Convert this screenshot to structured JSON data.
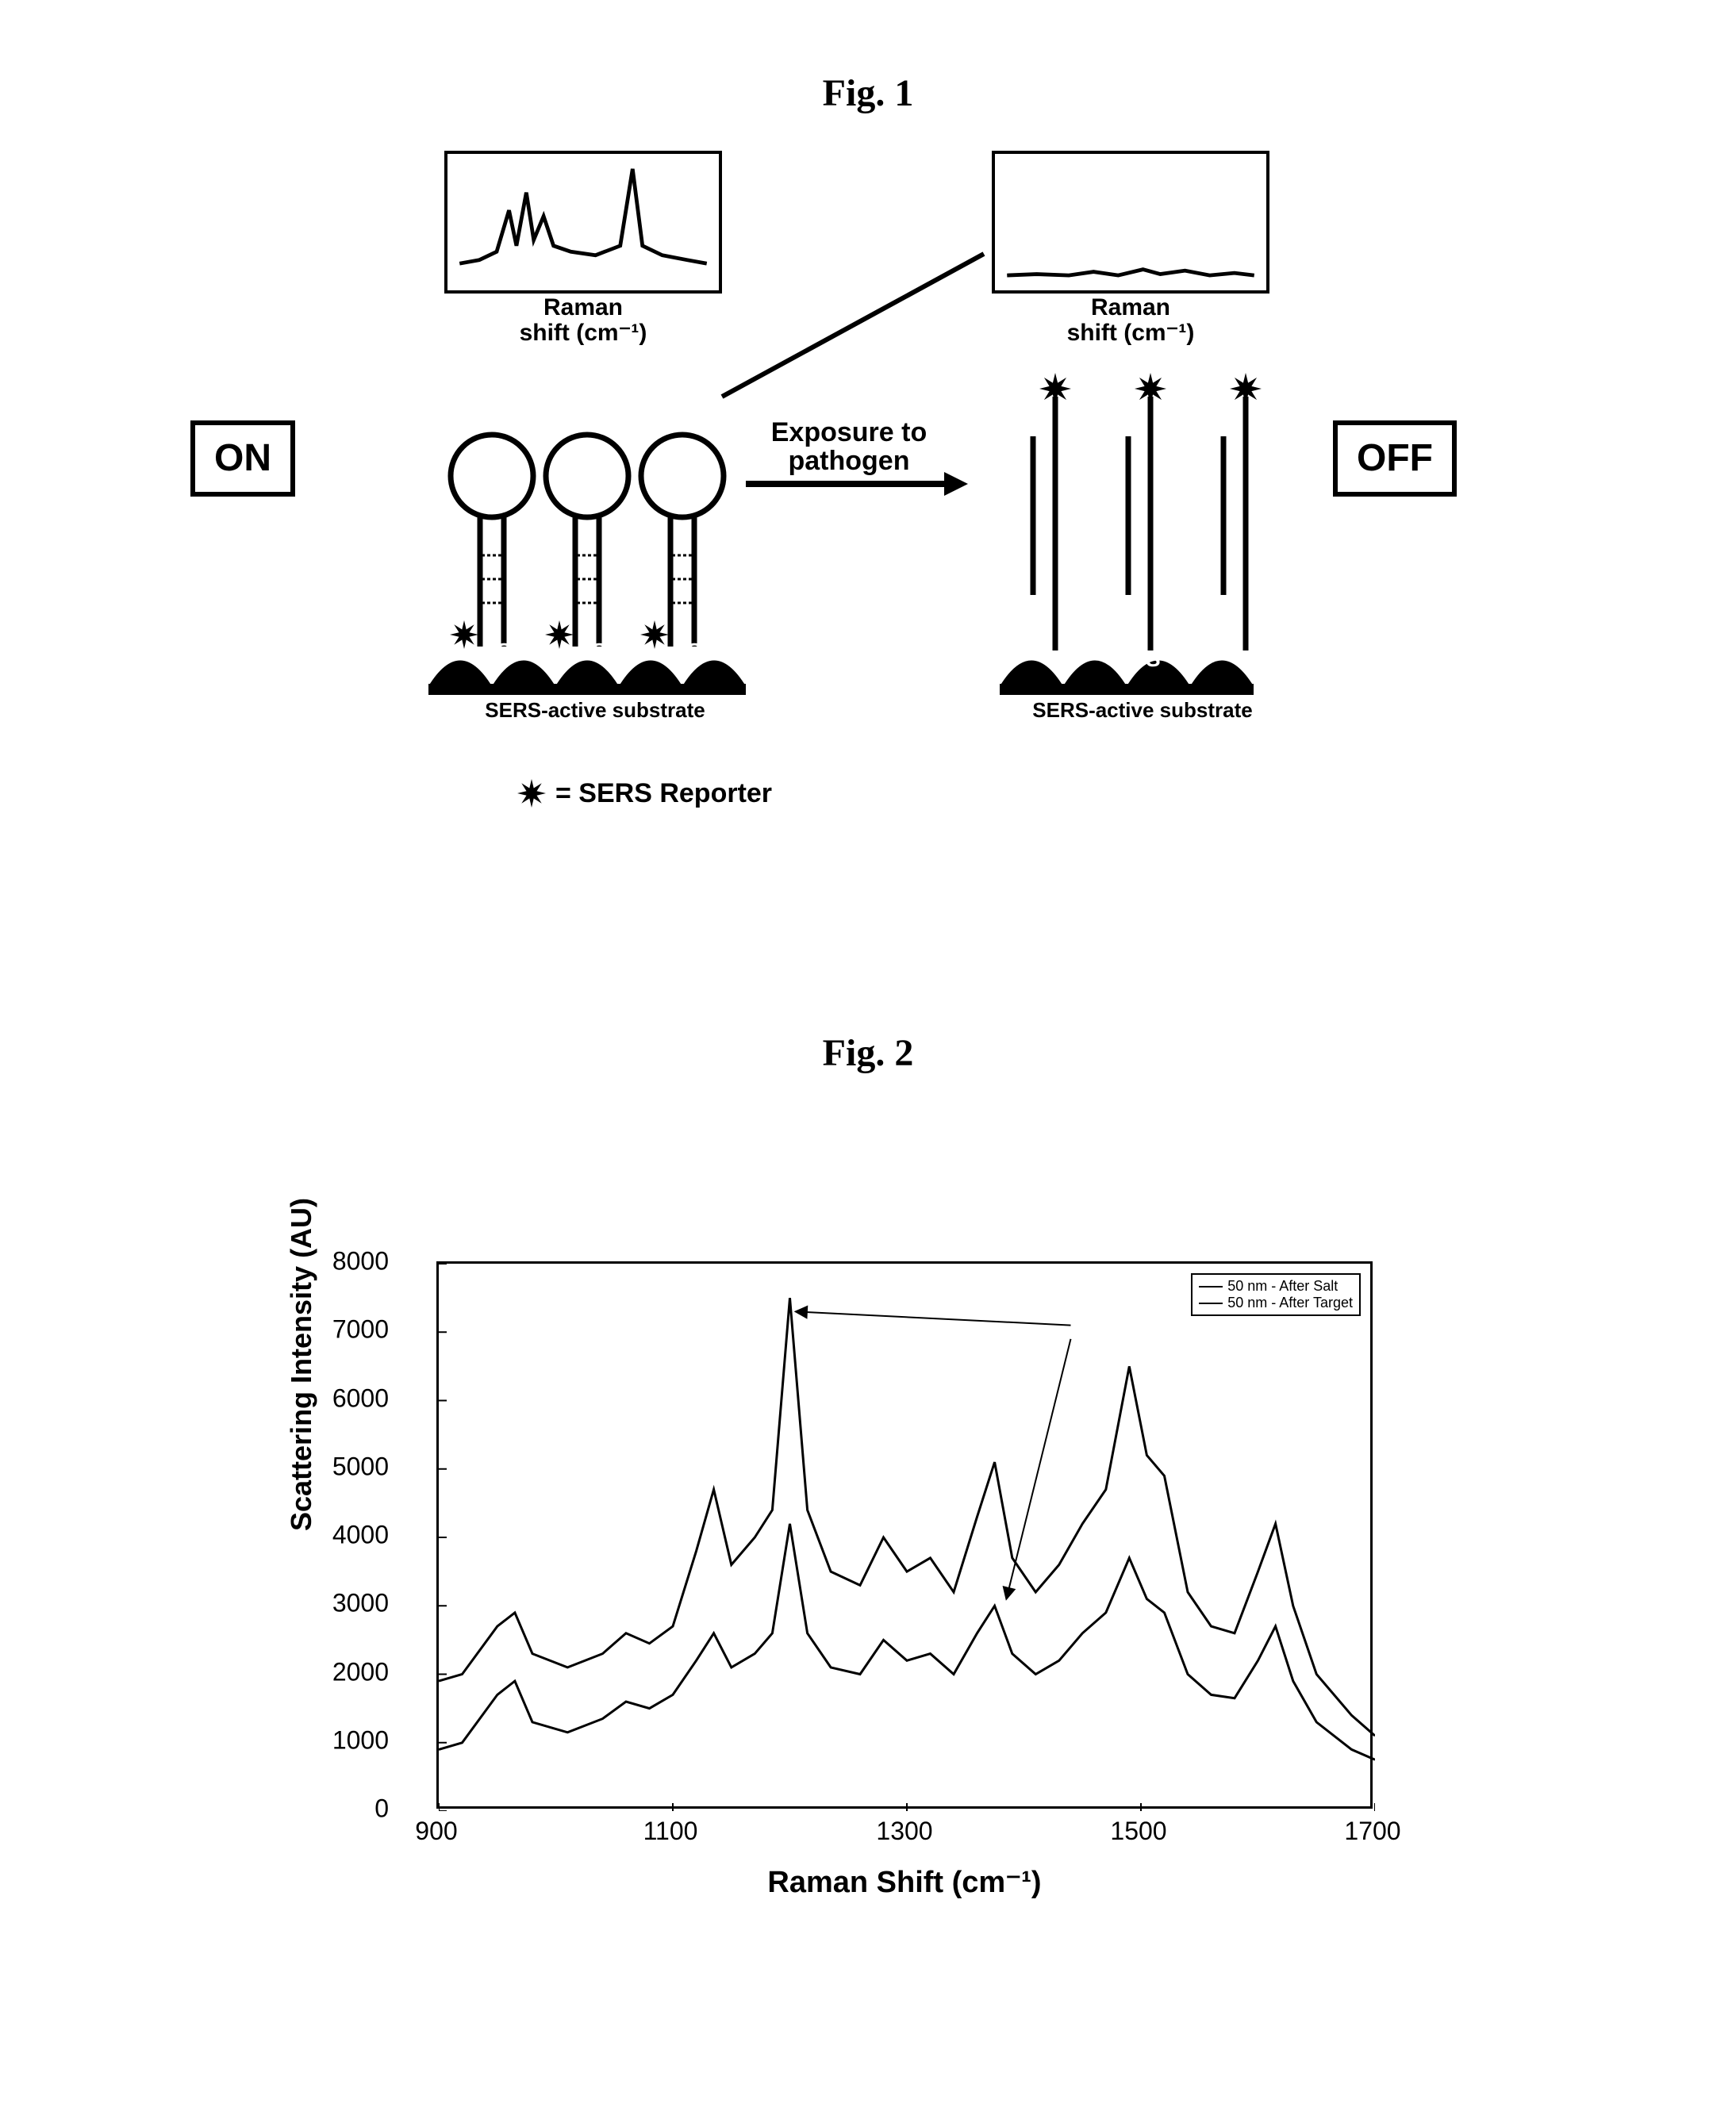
{
  "fig1": {
    "title": "Fig. 1",
    "spec_caption_left_l1": "Raman",
    "spec_caption_left_l2": "shift (cm⁻¹)",
    "spec_caption_right_l1": "Raman",
    "spec_caption_right_l2": "shift (cm⁻¹)",
    "on_label": "ON",
    "off_label": "OFF",
    "arrow_l1": "Exposure to",
    "arrow_l2": "pathogen",
    "substrate_label": "SERS-active substrate",
    "s_label": "S",
    "legend_text": "= SERS Reporter",
    "colors": {
      "line": "#000000",
      "fill_black": "#000000",
      "bg": "#ffffff"
    },
    "spec_left_on": {
      "points": [
        [
          0,
          0.15
        ],
        [
          0.08,
          0.18
        ],
        [
          0.15,
          0.25
        ],
        [
          0.2,
          0.6
        ],
        [
          0.23,
          0.3
        ],
        [
          0.27,
          0.75
        ],
        [
          0.3,
          0.35
        ],
        [
          0.34,
          0.55
        ],
        [
          0.38,
          0.3
        ],
        [
          0.45,
          0.25
        ],
        [
          0.55,
          0.22
        ],
        [
          0.65,
          0.3
        ],
        [
          0.7,
          0.95
        ],
        [
          0.74,
          0.3
        ],
        [
          0.82,
          0.22
        ],
        [
          0.92,
          0.18
        ],
        [
          1,
          0.15
        ]
      ]
    },
    "spec_right_off": {
      "points": [
        [
          0,
          0.05
        ],
        [
          0.12,
          0.06
        ],
        [
          0.25,
          0.05
        ],
        [
          0.35,
          0.08
        ],
        [
          0.45,
          0.05
        ],
        [
          0.55,
          0.1
        ],
        [
          0.62,
          0.06
        ],
        [
          0.72,
          0.09
        ],
        [
          0.82,
          0.05
        ],
        [
          0.92,
          0.07
        ],
        [
          1,
          0.05
        ]
      ]
    }
  },
  "fig2": {
    "title": "Fig. 2",
    "y_axis_title": "Scattering Intensity (AU)",
    "x_axis_title": "Raman Shift (cm⁻¹)",
    "x_min": 900,
    "x_max": 1700,
    "y_min": 0,
    "y_max": 8000,
    "x_ticks": [
      900,
      1100,
      1300,
      1500,
      1700
    ],
    "y_ticks": [
      0,
      1000,
      2000,
      3000,
      4000,
      5000,
      6000,
      7000,
      8000
    ],
    "legend": {
      "series1": "50 nm - After Salt",
      "series2": "50 nm - After Target"
    },
    "colors": {
      "axis": "#000000",
      "series1": "#000000",
      "series2": "#000000",
      "bg": "#ffffff"
    },
    "line_width": 3,
    "series1_points": [
      [
        900,
        1900
      ],
      [
        920,
        2000
      ],
      [
        950,
        2700
      ],
      [
        965,
        2900
      ],
      [
        980,
        2300
      ],
      [
        1010,
        2100
      ],
      [
        1040,
        2300
      ],
      [
        1060,
        2600
      ],
      [
        1080,
        2450
      ],
      [
        1100,
        2700
      ],
      [
        1120,
        3800
      ],
      [
        1135,
        4700
      ],
      [
        1150,
        3600
      ],
      [
        1170,
        4000
      ],
      [
        1185,
        4400
      ],
      [
        1200,
        7500
      ],
      [
        1215,
        4400
      ],
      [
        1235,
        3500
      ],
      [
        1260,
        3300
      ],
      [
        1280,
        4000
      ],
      [
        1300,
        3500
      ],
      [
        1320,
        3700
      ],
      [
        1340,
        3200
      ],
      [
        1360,
        4300
      ],
      [
        1375,
        5100
      ],
      [
        1390,
        3700
      ],
      [
        1410,
        3200
      ],
      [
        1430,
        3600
      ],
      [
        1450,
        4200
      ],
      [
        1470,
        4700
      ],
      [
        1490,
        6500
      ],
      [
        1505,
        5200
      ],
      [
        1520,
        4900
      ],
      [
        1540,
        3200
      ],
      [
        1560,
        2700
      ],
      [
        1580,
        2600
      ],
      [
        1600,
        3500
      ],
      [
        1615,
        4200
      ],
      [
        1630,
        3000
      ],
      [
        1650,
        2000
      ],
      [
        1680,
        1400
      ],
      [
        1700,
        1100
      ]
    ],
    "series2_points": [
      [
        900,
        900
      ],
      [
        920,
        1000
      ],
      [
        950,
        1700
      ],
      [
        965,
        1900
      ],
      [
        980,
        1300
      ],
      [
        1010,
        1150
      ],
      [
        1040,
        1350
      ],
      [
        1060,
        1600
      ],
      [
        1080,
        1500
      ],
      [
        1100,
        1700
      ],
      [
        1120,
        2200
      ],
      [
        1135,
        2600
      ],
      [
        1150,
        2100
      ],
      [
        1170,
        2300
      ],
      [
        1185,
        2600
      ],
      [
        1200,
        4200
      ],
      [
        1215,
        2600
      ],
      [
        1235,
        2100
      ],
      [
        1260,
        2000
      ],
      [
        1280,
        2500
      ],
      [
        1300,
        2200
      ],
      [
        1320,
        2300
      ],
      [
        1340,
        2000
      ],
      [
        1360,
        2600
      ],
      [
        1375,
        3000
      ],
      [
        1390,
        2300
      ],
      [
        1410,
        2000
      ],
      [
        1430,
        2200
      ],
      [
        1450,
        2600
      ],
      [
        1470,
        2900
      ],
      [
        1490,
        3700
      ],
      [
        1505,
        3100
      ],
      [
        1520,
        2900
      ],
      [
        1540,
        2000
      ],
      [
        1560,
        1700
      ],
      [
        1580,
        1650
      ],
      [
        1600,
        2200
      ],
      [
        1615,
        2700
      ],
      [
        1630,
        1900
      ],
      [
        1650,
        1300
      ],
      [
        1680,
        900
      ],
      [
        1700,
        750
      ]
    ],
    "arrow_annotations": [
      {
        "from_x": 1440,
        "from_y": 7100,
        "to_x": 1205,
        "to_y": 7300
      },
      {
        "from_x": 1440,
        "from_y": 6900,
        "to_x": 1385,
        "to_y": 3100
      }
    ]
  }
}
